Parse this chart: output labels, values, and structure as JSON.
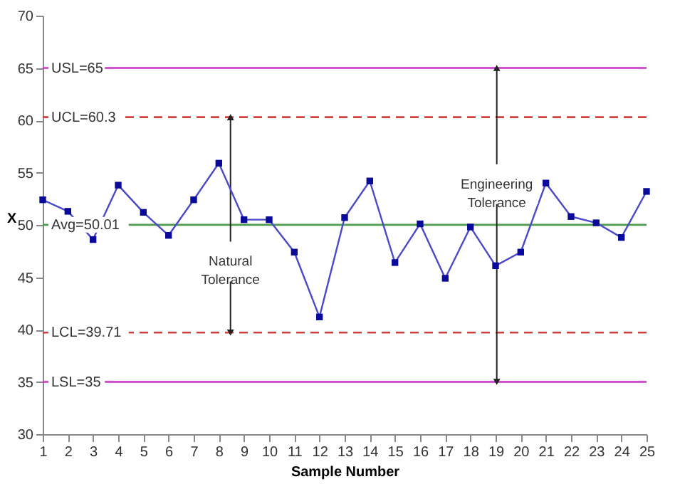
{
  "chart_data": {
    "type": "line",
    "xlabel": "Sample Number",
    "ylabel": "X",
    "x": [
      1,
      2,
      3,
      4,
      5,
      6,
      7,
      8,
      9,
      10,
      11,
      12,
      13,
      14,
      15,
      16,
      17,
      18,
      19,
      20,
      21,
      22,
      23,
      24,
      25
    ],
    "series": [
      {
        "color": "#4a4ac8",
        "values": [
          52.4,
          51.3,
          48.6,
          53.8,
          51.2,
          49.0,
          52.4,
          55.9,
          50.5,
          50.5,
          47.4,
          41.2,
          50.7,
          54.2,
          46.4,
          50.1,
          44.9,
          49.8,
          46.1,
          47.4,
          54.0,
          50.8,
          50.2,
          48.8,
          53.2
        ]
      }
    ],
    "marker": "square",
    "xlim": [
      1,
      25
    ],
    "xticks": [
      1,
      2,
      3,
      4,
      5,
      6,
      7,
      8,
      9,
      10,
      11,
      12,
      13,
      14,
      15,
      16,
      17,
      18,
      19,
      20,
      21,
      22,
      23,
      24,
      25
    ],
    "ylim": [
      30,
      70
    ],
    "yticks": [
      30,
      35,
      40,
      45,
      50,
      55,
      60,
      65,
      70
    ],
    "grid": false,
    "ref_lines": [
      {
        "axis": "y",
        "value": 65,
        "label": "USL=65",
        "color": "#cc33cc",
        "line_style": "solid"
      },
      {
        "axis": "y",
        "value": 60.3,
        "label": "UCL=60.3",
        "color": "#d04040",
        "line_style": "dashed"
      },
      {
        "axis": "y",
        "value": 50.01,
        "label": "Avg=50.01",
        "color": "#4d9a4d",
        "line_style": "solid"
      },
      {
        "axis": "y",
        "value": 39.71,
        "label": "LCL=39.71",
        "color": "#d04040",
        "line_style": "dashed"
      },
      {
        "axis": "y",
        "value": 35,
        "label": "LSL=35",
        "color": "#cc33cc",
        "line_style": "solid"
      }
    ],
    "annotations": [
      "Natural\nTolerance",
      "Engineering\nTolerance"
    ]
  }
}
